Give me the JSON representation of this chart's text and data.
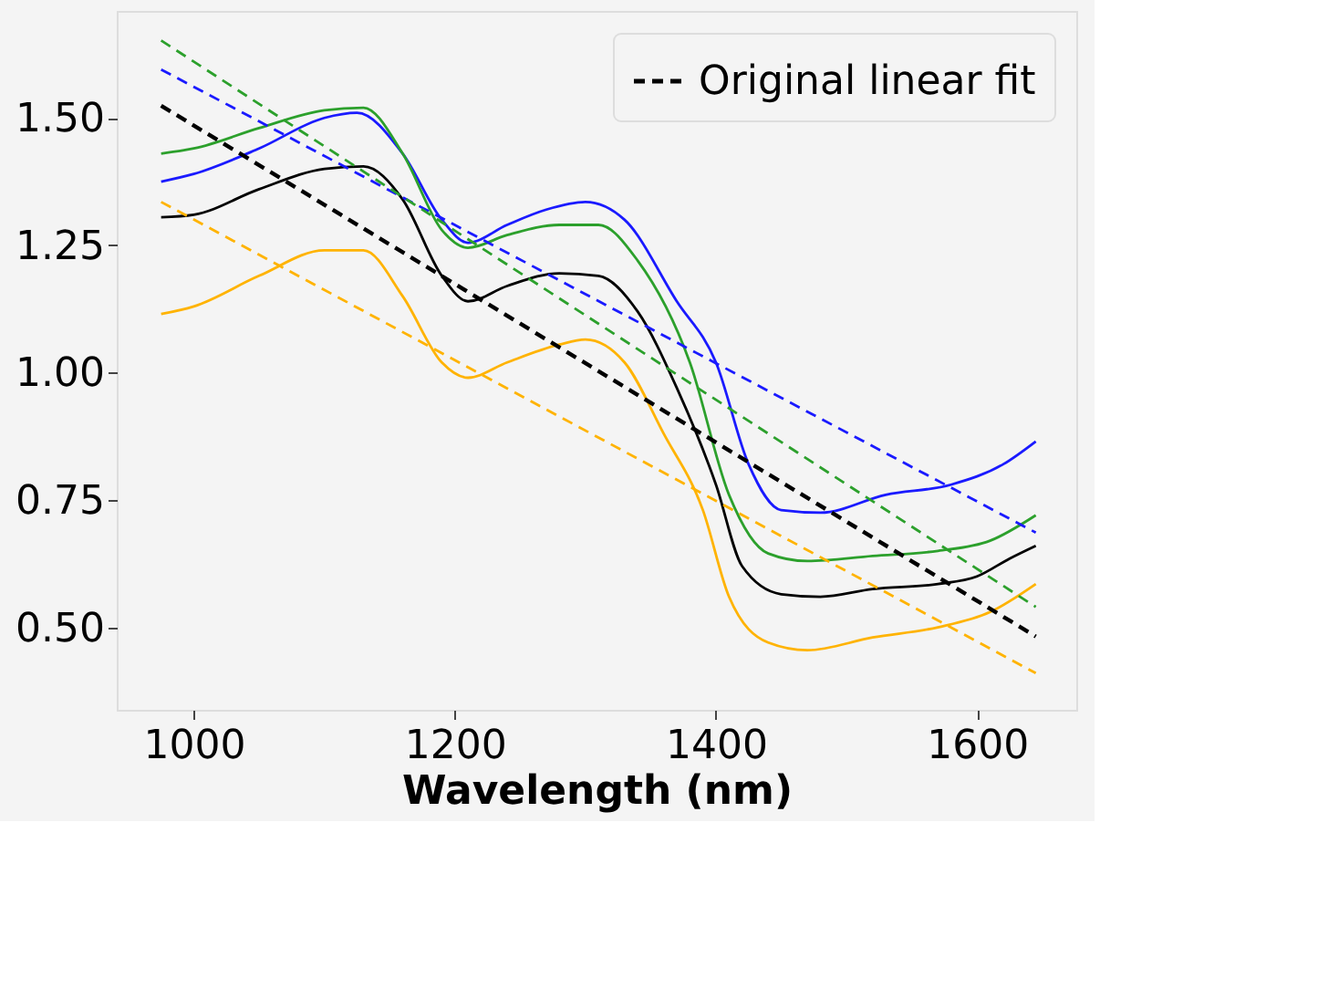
{
  "chart_data": {
    "type": "line",
    "xlabel": "Wavelength (nm)",
    "xlim": [
      941,
      1676
    ],
    "xticks": [
      1000,
      1200,
      1400,
      1600
    ],
    "ylim": [
      0.338,
      1.71
    ],
    "yticks": [
      {
        "value": 0.5,
        "label": "0.50"
      },
      {
        "value": 0.75,
        "label": "0.75"
      },
      {
        "value": 1.0,
        "label": "1.00"
      },
      {
        "value": 1.25,
        "label": "1.25"
      },
      {
        "value": 1.5,
        "label": "1.50"
      }
    ],
    "grid": false,
    "legend": "top right",
    "series": [
      {
        "color": "#1a1aff",
        "line_style": "solid",
        "x": [
          975,
          1000,
          1050,
          1100,
          1125,
          1160,
          1190,
          1210,
          1240,
          1270,
          1300,
          1330,
          1370,
          1400,
          1425,
          1450,
          1480,
          1530,
          1580,
          1620,
          1645
        ],
        "values": [
          1.375,
          1.39,
          1.44,
          1.5,
          1.51,
          1.43,
          1.3,
          1.255,
          1.29,
          1.32,
          1.335,
          1.3,
          1.14,
          1.02,
          0.82,
          0.73,
          0.725,
          0.76,
          0.78,
          0.82,
          0.865
        ]
      },
      {
        "color": "#2ca02c",
        "line_style": "solid",
        "x": [
          975,
          1000,
          1050,
          1100,
          1130,
          1160,
          1190,
          1210,
          1240,
          1280,
          1310,
          1340,
          1380,
          1410,
          1440,
          1470,
          1520,
          1570,
          1610,
          1645
        ],
        "values": [
          1.43,
          1.44,
          1.48,
          1.515,
          1.52,
          1.43,
          1.28,
          1.245,
          1.27,
          1.29,
          1.29,
          1.22,
          1.02,
          0.76,
          0.645,
          0.63,
          0.64,
          0.65,
          0.67,
          0.72
        ]
      },
      {
        "color": "#000000",
        "line_style": "solid",
        "x": [
          975,
          1000,
          1050,
          1100,
          1130,
          1160,
          1190,
          1210,
          1240,
          1280,
          1310,
          1340,
          1370,
          1400,
          1420,
          1450,
          1480,
          1520,
          1570,
          1600,
          1625,
          1645
        ],
        "values": [
          1.305,
          1.31,
          1.36,
          1.4,
          1.405,
          1.34,
          1.19,
          1.14,
          1.17,
          1.195,
          1.19,
          1.12,
          0.97,
          0.78,
          0.62,
          0.565,
          0.56,
          0.575,
          0.585,
          0.6,
          0.635,
          0.66
        ]
      },
      {
        "color": "#ffb300",
        "line_style": "solid",
        "x": [
          975,
          1000,
          1050,
          1100,
          1130,
          1160,
          1190,
          1210,
          1240,
          1280,
          1300,
          1330,
          1360,
          1390,
          1410,
          1440,
          1470,
          1520,
          1570,
          1610,
          1645
        ],
        "values": [
          1.115,
          1.13,
          1.19,
          1.24,
          1.24,
          1.15,
          1.02,
          0.99,
          1.02,
          1.055,
          1.065,
          1.02,
          0.88,
          0.73,
          0.56,
          0.47,
          0.455,
          0.48,
          0.5,
          0.53,
          0.585
        ]
      },
      {
        "color": "#1a1aff",
        "line_style": "dashed",
        "x": [
          975,
          1645
        ],
        "values": [
          1.595,
          0.686
        ]
      },
      {
        "color": "#2ca02c",
        "line_style": "dashed",
        "x": [
          975,
          1645
        ],
        "values": [
          1.652,
          0.54
        ]
      },
      {
        "color": "#ffb300",
        "line_style": "dashed",
        "x": [
          975,
          1645
        ],
        "values": [
          1.335,
          0.41
        ]
      },
      {
        "name": "Original linear fit",
        "color": "#000000",
        "line_style": "dashed",
        "x": [
          975,
          1645
        ],
        "values": [
          1.524,
          0.482
        ]
      }
    ]
  }
}
